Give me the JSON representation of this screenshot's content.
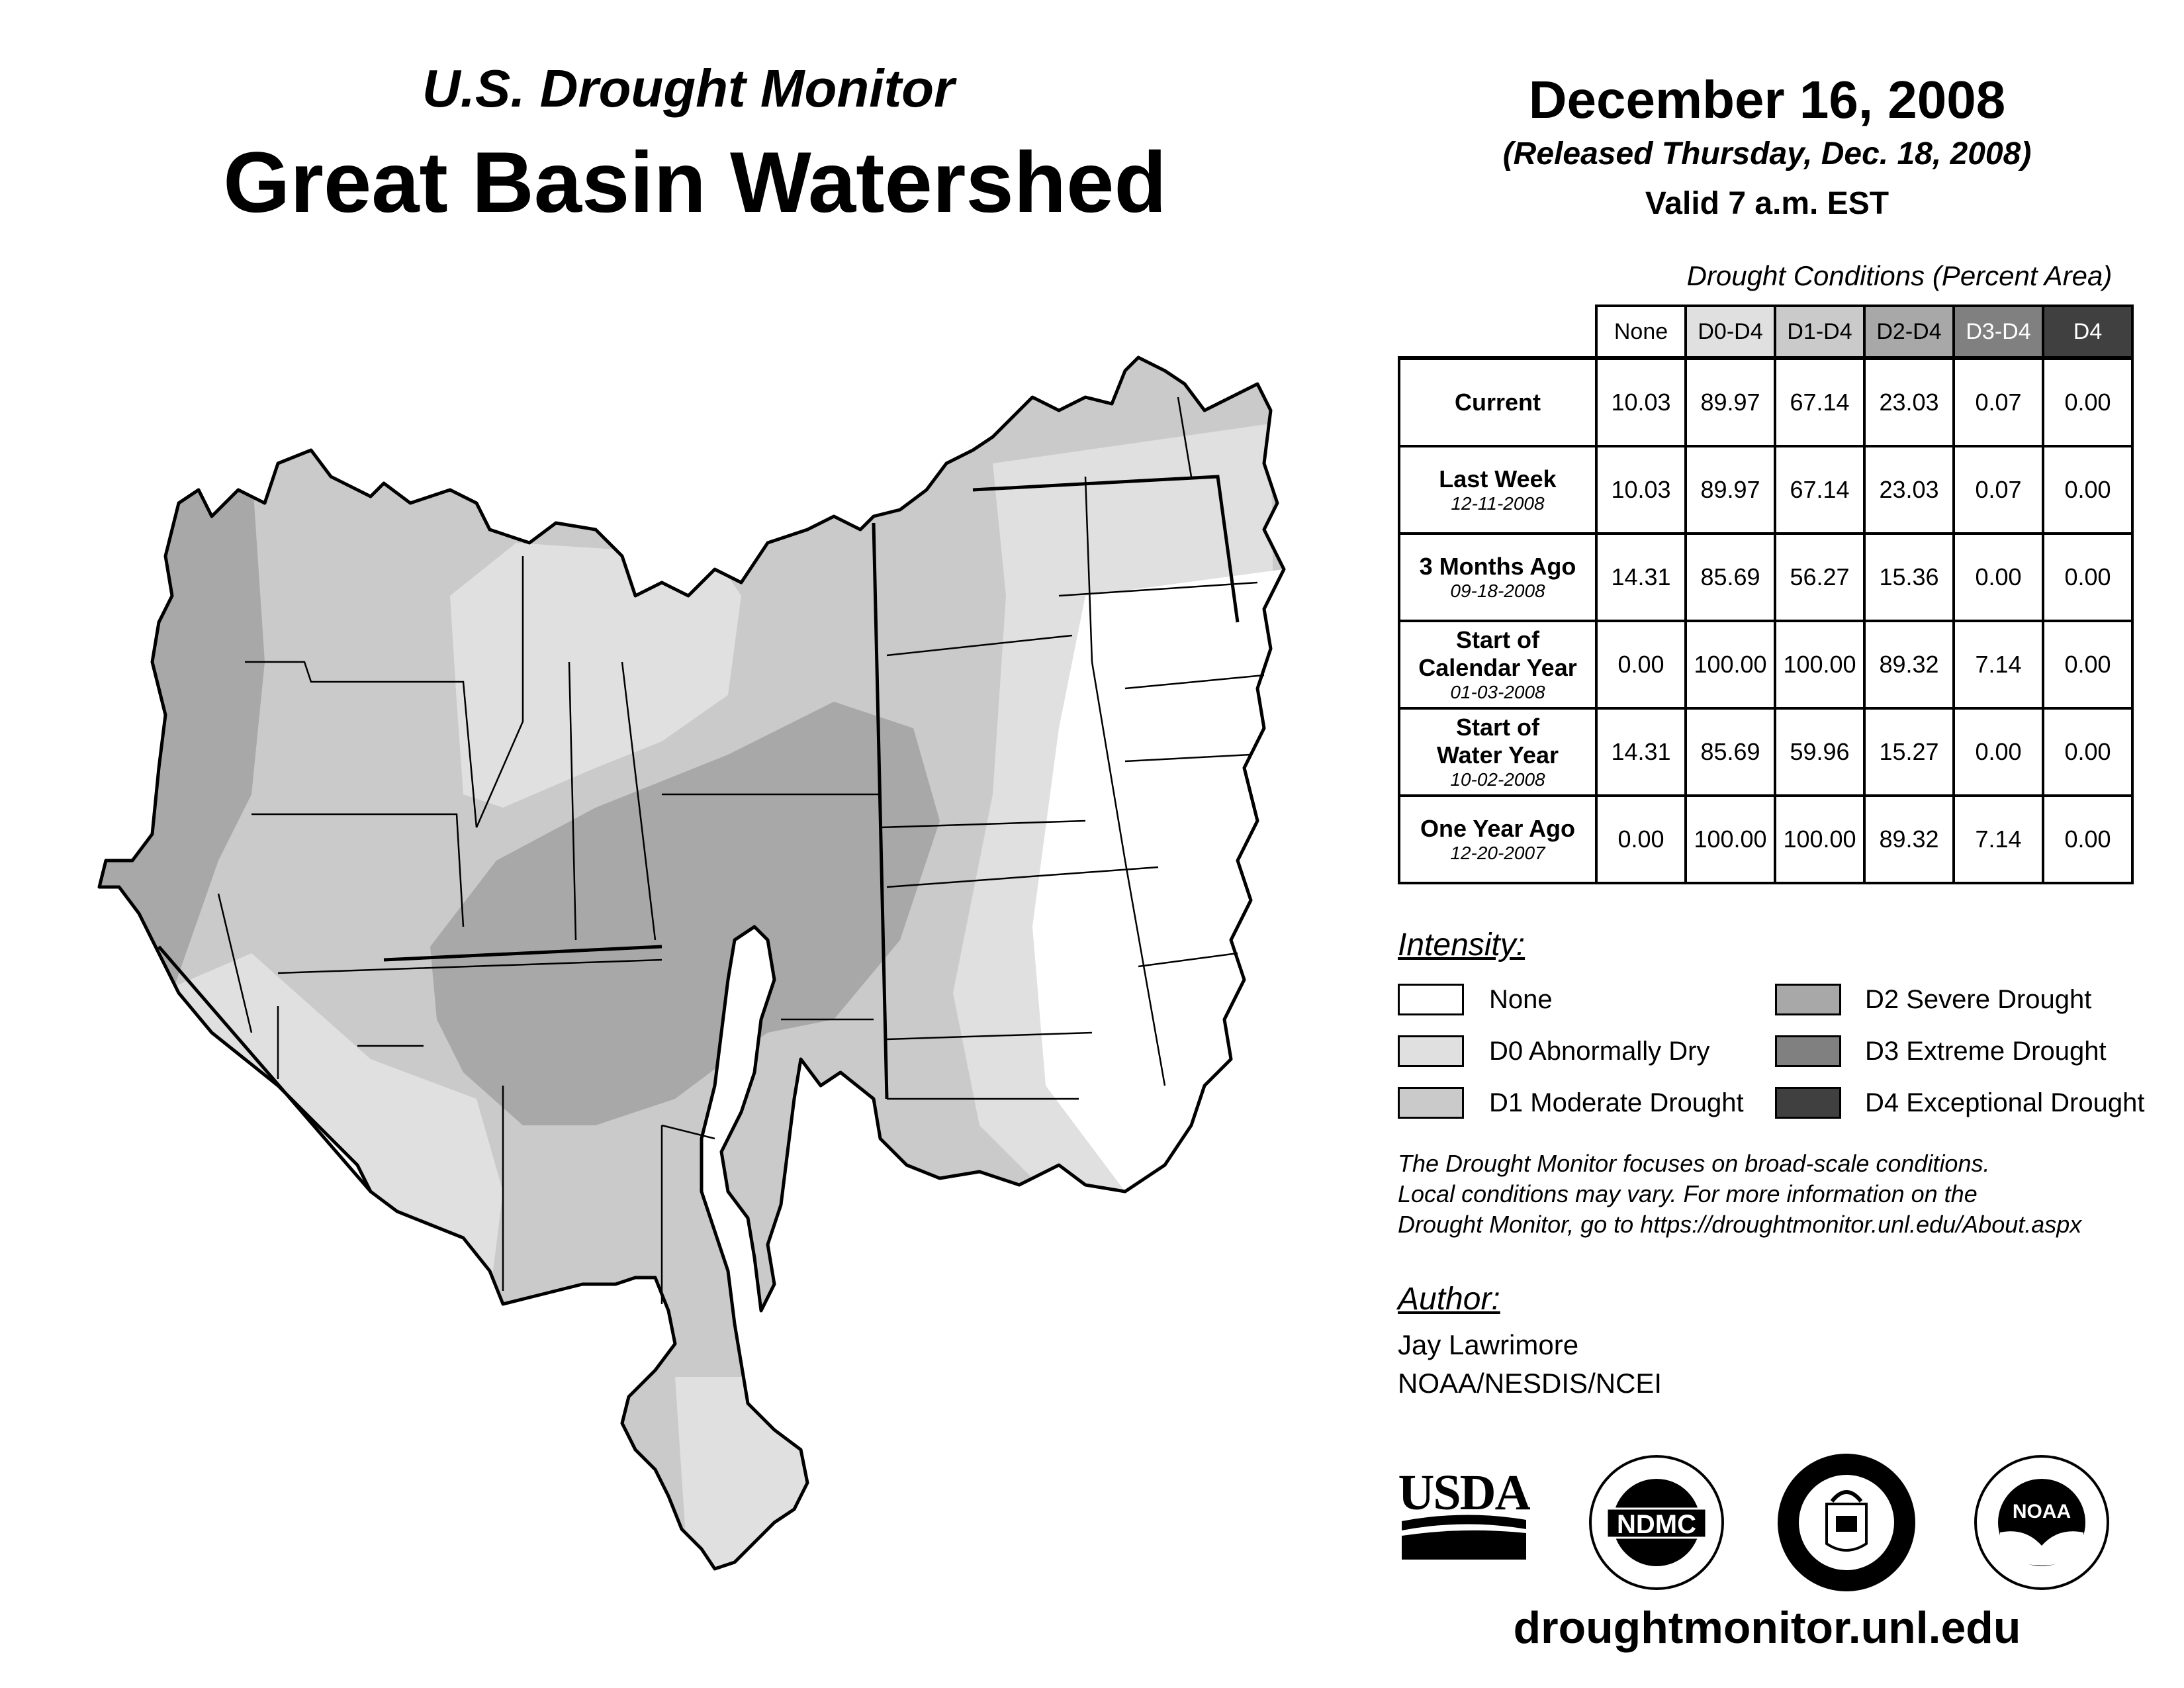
{
  "header": {
    "subtitle": "U.S. Drought Monitor",
    "title": "Great Basin Watershed",
    "date": "December 16, 2008",
    "released": "(Released Thursday, Dec. 18, 2008)",
    "valid": "Valid 7 a.m. EST"
  },
  "table": {
    "caption": "Drought Conditions (Percent Area)",
    "columns": [
      "None",
      "D0-D4",
      "D1-D4",
      "D2-D4",
      "D3-D4",
      "D4"
    ],
    "rows": [
      {
        "label": "Current",
        "label2": "",
        "date": "",
        "values": [
          "10.03",
          "89.97",
          "67.14",
          "23.03",
          "0.07",
          "0.00"
        ]
      },
      {
        "label": "Last Week",
        "label2": "",
        "date": "12-11-2008",
        "values": [
          "10.03",
          "89.97",
          "67.14",
          "23.03",
          "0.07",
          "0.00"
        ]
      },
      {
        "label": "3 Months Ago",
        "label2": "",
        "date": "09-18-2008",
        "values": [
          "14.31",
          "85.69",
          "56.27",
          "15.36",
          "0.00",
          "0.00"
        ]
      },
      {
        "label": "Start of",
        "label2": "Calendar Year",
        "date": "01-03-2008",
        "values": [
          "0.00",
          "100.00",
          "100.00",
          "89.32",
          "7.14",
          "0.00"
        ]
      },
      {
        "label": "Start of",
        "label2": "Water Year",
        "date": "10-02-2008",
        "values": [
          "14.31",
          "85.69",
          "59.96",
          "15.27",
          "0.00",
          "0.00"
        ]
      },
      {
        "label": "One Year Ago",
        "label2": "",
        "date": "12-20-2007",
        "values": [
          "0.00",
          "100.00",
          "100.00",
          "89.32",
          "7.14",
          "0.00"
        ]
      }
    ]
  },
  "legend": {
    "heading": "Intensity:",
    "items": [
      {
        "label": "None",
        "color": "#ffffff"
      },
      {
        "label": "D0 Abnormally Dry",
        "color": "#e0e0e0"
      },
      {
        "label": "D1 Moderate Drought",
        "color": "#cacaca"
      },
      {
        "label": "D2 Severe Drought",
        "color": "#a8a8a8"
      },
      {
        "label": "D3 Extreme Drought",
        "color": "#808080"
      },
      {
        "label": "D4 Exceptional Drought",
        "color": "#404040"
      }
    ]
  },
  "disclaimer": {
    "line1": "The Drought Monitor focuses on broad-scale conditions.",
    "line2": "Local conditions may vary. For more information on the",
    "line3": "Drought Monitor, go to https://droughtmonitor.unl.edu/About.aspx"
  },
  "author": {
    "heading": "Author:",
    "name": "Jay Lawrimore",
    "org": "NOAA/NESDIS/NCEI"
  },
  "logos": {
    "usda": "USDA",
    "ndmc": "NDMC",
    "noaa": "NOAA"
  },
  "footer": {
    "url": "droughtmonitor.unl.edu"
  },
  "map": {
    "region": "Great Basin Watershed",
    "icon": "drought-map"
  }
}
